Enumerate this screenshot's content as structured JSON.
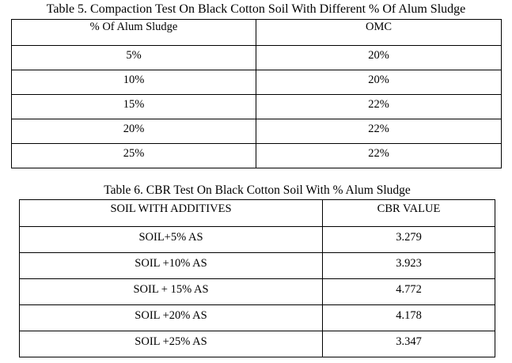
{
  "table5": {
    "caption": "Table 5. Compaction Test On Black Cotton Soil With Different % Of Alum Sludge",
    "headers": [
      "% Of Alum Sludge",
      "OMC"
    ],
    "rows": [
      [
        "5%",
        "20%"
      ],
      [
        "10%",
        "20%"
      ],
      [
        "15%",
        "22%"
      ],
      [
        "20%",
        "22%"
      ],
      [
        "25%",
        "22%"
      ]
    ]
  },
  "table6": {
    "caption": "Table 6. CBR Test On Black Cotton Soil With % Alum Sludge",
    "headers": [
      "SOIL WITH ADDITIVES",
      "CBR VALUE"
    ],
    "rows": [
      [
        "SOIL+5% AS",
        "3.279"
      ],
      [
        "SOIL +10% AS",
        "3.923"
      ],
      [
        "SOIL + 15% AS",
        "4.772"
      ],
      [
        "SOIL +20% AS",
        "4.178"
      ],
      [
        "SOIL +25% AS",
        "3.347"
      ]
    ]
  }
}
